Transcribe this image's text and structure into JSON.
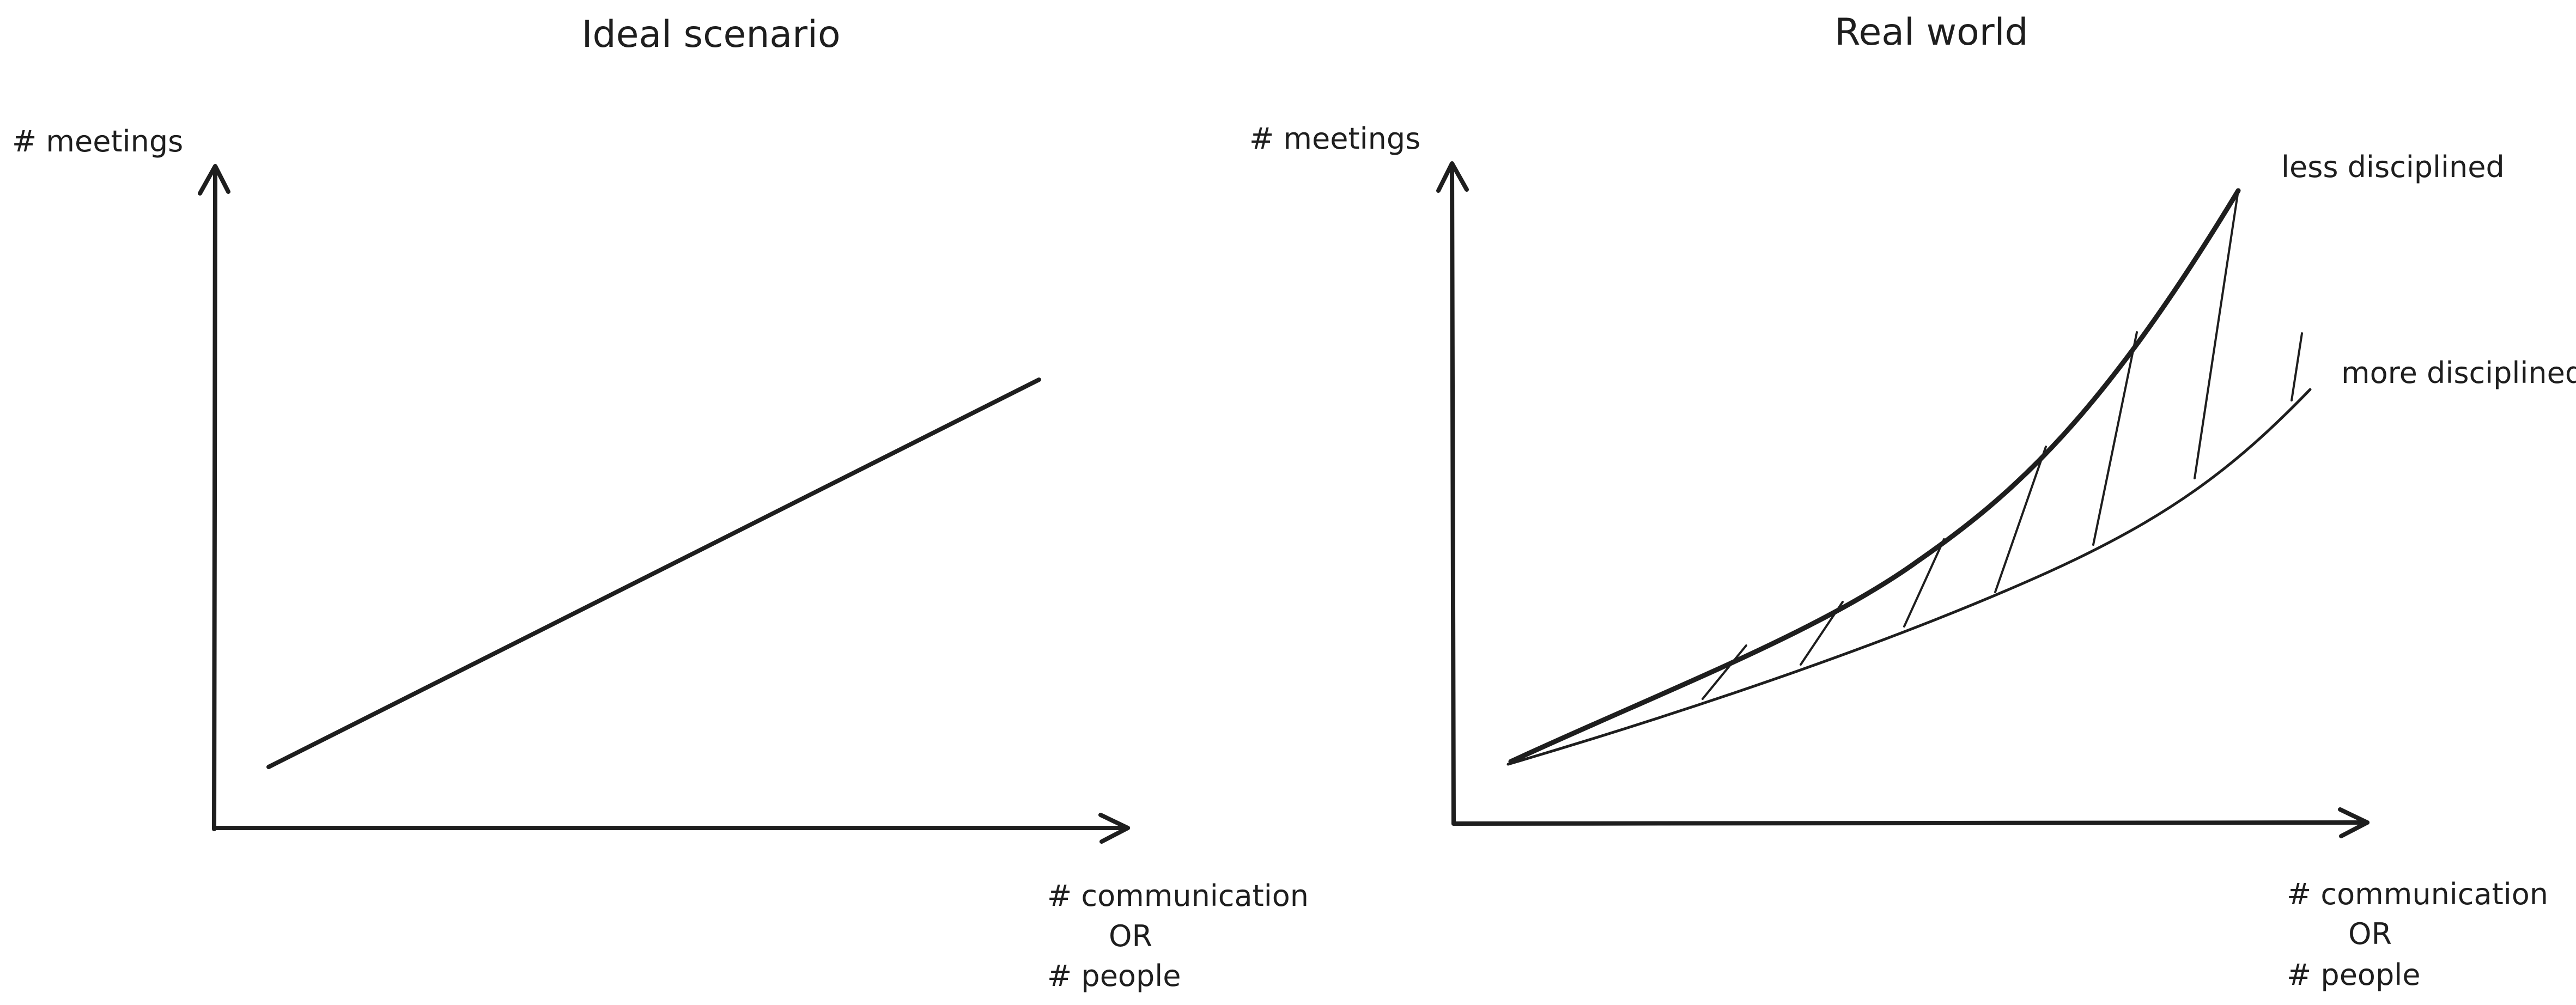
{
  "panels": [
    {
      "title": "Ideal scenario",
      "y_axis_label": "# meetings",
      "x_axis_label": [
        "# communication",
        "OR",
        "# people"
      ]
    },
    {
      "title": "Real world",
      "y_axis_label": "# meetings",
      "x_axis_label": [
        "# communication",
        "OR",
        "# people"
      ],
      "series": [
        {
          "name": "less disciplined"
        },
        {
          "name": "more disciplined"
        }
      ]
    }
  ],
  "colors": {
    "ink": "#1e1e1e",
    "background": "#ffffff"
  }
}
